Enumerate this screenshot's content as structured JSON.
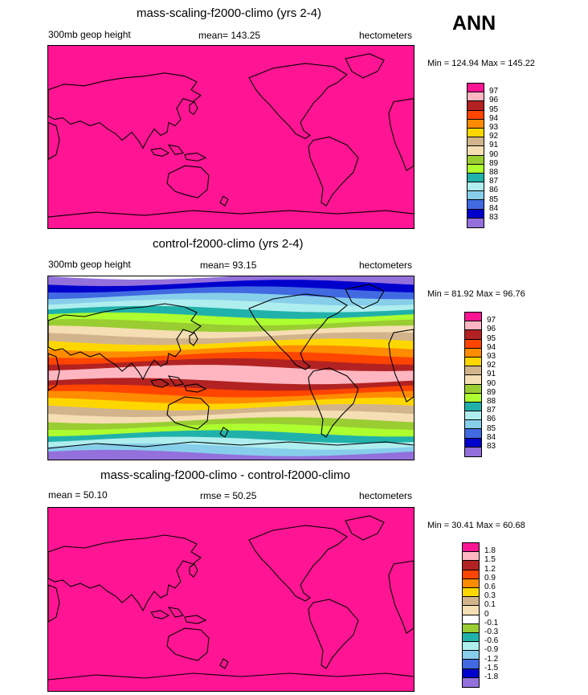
{
  "season": "ANN",
  "panels": [
    {
      "title": "mass-scaling-f2000-climo (yrs 2-4)",
      "left": "300mb geop height",
      "center": "mean=  143.25",
      "right": "hectometers",
      "minmax": "Min = 124.94 Max = 145.22",
      "colorbar": {
        "labels": [
          "97",
          "96",
          "95",
          "94",
          "93",
          "92",
          "91",
          "90",
          "89",
          "88",
          "87",
          "86",
          "85",
          "84",
          "83"
        ],
        "colors": [
          "#ff1493",
          "#ffb6c1",
          "#b22222",
          "#ff4500",
          "#ff8c00",
          "#ffd700",
          "#d2b48c",
          "#f5deb3",
          "#9acd32",
          "#adff2f",
          "#20b2aa",
          "#afeeee",
          "#87ceeb",
          "#4169e1",
          "#0000cd",
          "#9370db"
        ]
      },
      "fill": "#ff1493"
    },
    {
      "title": "control-f2000-climo (yrs 2-4)",
      "left": "300mb geop height",
      "center": "mean=  93.15",
      "right": "hectometers",
      "minmax": "Min = 81.92 Max = 96.76",
      "colorbar": {
        "labels": [
          "97",
          "96",
          "95",
          "94",
          "93",
          "92",
          "91",
          "90",
          "89",
          "88",
          "87",
          "86",
          "85",
          "84",
          "83"
        ],
        "colors": [
          "#ff1493",
          "#ffb6c1",
          "#b22222",
          "#ff4500",
          "#ff8c00",
          "#ffd700",
          "#d2b48c",
          "#f5deb3",
          "#9acd32",
          "#adff2f",
          "#20b2aa",
          "#afeeee",
          "#87ceeb",
          "#4169e1",
          "#0000cd",
          "#9370db"
        ]
      },
      "bands": [
        "#9370db",
        "#87ceeb",
        "#afeeee",
        "#20b2aa",
        "#adff2f",
        "#9acd32",
        "#f5deb3",
        "#d2b48c",
        "#ffd700",
        "#ff8c00",
        "#ff4500",
        "#b22222",
        "#ffb6c1",
        "#ffb6c1",
        "#b22222",
        "#ff4500",
        "#ff8c00",
        "#ffd700",
        "#d2b48c",
        "#f5deb3",
        "#9acd32",
        "#adff2f",
        "#20b2aa",
        "#afeeee",
        "#87ceeb",
        "#4169e1",
        "#0000cd",
        "#9370db"
      ]
    },
    {
      "title": "mass-scaling-f2000-climo - control-f2000-climo",
      "left": "mean =  50.10",
      "center": "rmse =  50.25",
      "right": "hectometers",
      "minmax": "Min = 30.41 Max = 60.68",
      "colorbar": {
        "labels": [
          "1.8",
          "1.5",
          "1.2",
          "0.9",
          "0.6",
          "0.3",
          "0.1",
          "0",
          "-0.1",
          "-0.3",
          "-0.6",
          "-0.9",
          "-1.2",
          "-1.5",
          "-1.8"
        ],
        "colors": [
          "#ff1493",
          "#ffb6c1",
          "#b22222",
          "#ff4500",
          "#ff8c00",
          "#ffd700",
          "#d2b48c",
          "#f5deb3",
          "#ffffff",
          "#9acd32",
          "#20b2aa",
          "#afeeee",
          "#87ceeb",
          "#4169e1",
          "#0000cd",
          "#9370db"
        ]
      },
      "fill": "#ff1493"
    }
  ]
}
